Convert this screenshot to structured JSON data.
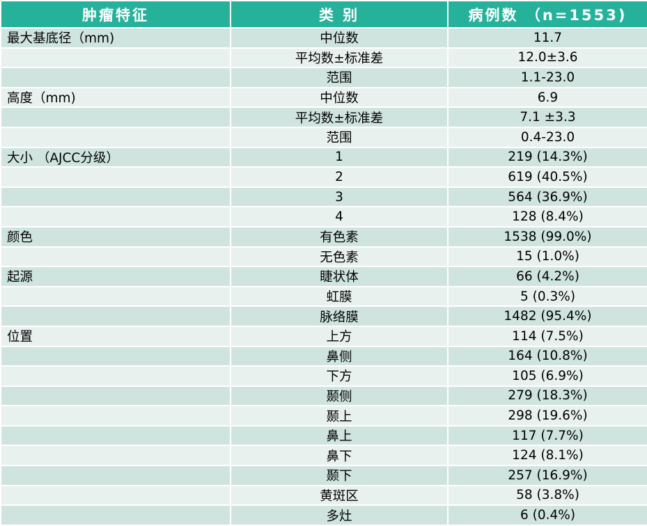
{
  "header": {
    "feature": "肿瘤特征",
    "category": "类 别",
    "cases": "病例数 （n=1553)"
  },
  "rows": [
    {
      "feature": "最大基底径（mm)",
      "category": "中位数",
      "value": "11.7"
    },
    {
      "feature": "",
      "category": "平均数±标准差",
      "value": "12.0±3.6"
    },
    {
      "feature": "",
      "category": "范围",
      "value": "1.1-23.0"
    },
    {
      "feature": "高度（mm)",
      "category": "中位数",
      "value": "6.9"
    },
    {
      "feature": "",
      "category": "平均数±标准差",
      "value": "7.1 ±3.3"
    },
    {
      "feature": "",
      "category": "范围",
      "value": "0.4-23.0"
    },
    {
      "feature": "大小 （AJCC分级）",
      "category": "1",
      "value": "219 (14.3%)"
    },
    {
      "feature": "",
      "category": "2",
      "value": "619 (40.5%)"
    },
    {
      "feature": "",
      "category": "3",
      "value": "564 (36.9%)"
    },
    {
      "feature": "",
      "category": "4",
      "value": "128 (8.4%)"
    },
    {
      "feature": "颜色",
      "category": "有色素",
      "value": "1538 (99.0%)"
    },
    {
      "feature": "",
      "category": "无色素",
      "value": "15 (1.0%)"
    },
    {
      "feature": "起源",
      "category": "睫状体",
      "value": "66 (4.2%)"
    },
    {
      "feature": "",
      "category": "虹膜",
      "value": "5 (0.3%)"
    },
    {
      "feature": "",
      "category": "脉络膜",
      "value": "1482 (95.4%)"
    },
    {
      "feature": "位置",
      "category": "上方",
      "value": "114 (7.5%)"
    },
    {
      "feature": "",
      "category": "鼻侧",
      "value": "164 (10.8%)"
    },
    {
      "feature": "",
      "category": "下方",
      "value": "105 (6.9%)"
    },
    {
      "feature": "",
      "category": "颞侧",
      "value": "279 (18.3%)"
    },
    {
      "feature": "",
      "category": "颞上",
      "value": "298 (19.6%)"
    },
    {
      "feature": "",
      "category": "鼻上",
      "value": "117 (7.7%)"
    },
    {
      "feature": "",
      "category": "鼻下",
      "value": "124 (8.1%)"
    },
    {
      "feature": "",
      "category": "颞下",
      "value": "257 (16.9%)"
    },
    {
      "feature": "",
      "category": "黄斑区",
      "value": "58 (3.8%)"
    },
    {
      "feature": "",
      "category": "多灶",
      "value": "6 (0.4%)"
    }
  ]
}
